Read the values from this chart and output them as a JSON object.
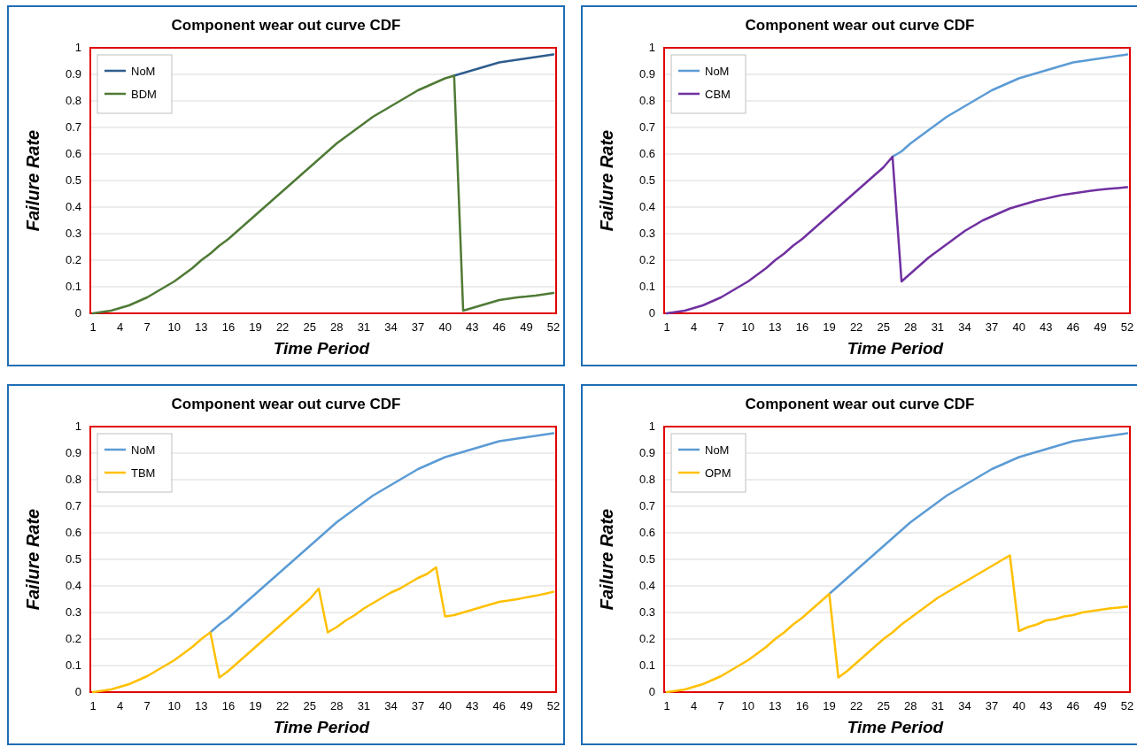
{
  "chart_data": [
    {
      "type": "line",
      "title": "Component wear out curve CDF",
      "xlabel": "Time Period",
      "ylabel": "Failure Rate",
      "categories": [
        "1",
        null,
        null,
        "4",
        null,
        null,
        "7",
        null,
        null,
        "10",
        null,
        null,
        "13",
        null,
        null,
        "16",
        null,
        null,
        "19",
        null,
        null,
        "22",
        null,
        null,
        "25",
        null,
        null,
        "28",
        null,
        null,
        "31",
        null,
        null,
        "34",
        null,
        null,
        "37",
        null,
        null,
        "40",
        null,
        null,
        "43",
        null,
        null,
        "46",
        null,
        null,
        "49",
        null,
        null,
        "52"
      ],
      "ylim": [
        0,
        1
      ],
      "yticks": [
        0,
        0.1,
        0.2,
        0.3,
        0.4,
        0.5,
        0.6,
        0.7,
        0.8,
        0.9,
        1
      ],
      "grid": "y",
      "legend": "top left",
      "series": [
        {
          "name": "NoM",
          "color": "#2e5d8e",
          "values": [
            null,
            null,
            null,
            null,
            null,
            null,
            null,
            null,
            null,
            null,
            null,
            null,
            null,
            null,
            null,
            null,
            null,
            null,
            null,
            null,
            null,
            null,
            null,
            null,
            null,
            null,
            null,
            null,
            null,
            null,
            null,
            null,
            null,
            null,
            null,
            null,
            null,
            null,
            null,
            null,
            0.895,
            0.905,
            0.915,
            0.925,
            0.935,
            0.945,
            0.95,
            0.955,
            0.96,
            0.965,
            0.97,
            0.975
          ]
        },
        {
          "name": "BDM",
          "color": "#4f7a35",
          "values": [
            0,
            0.005,
            0.01,
            0.02,
            0.03,
            0.045,
            0.06,
            0.08,
            0.1,
            0.12,
            0.145,
            0.17,
            0.2,
            0.225,
            0.255,
            0.28,
            0.31,
            0.34,
            0.37,
            0.4,
            0.43,
            0.46,
            0.49,
            0.52,
            0.55,
            0.58,
            0.61,
            0.64,
            0.665,
            0.69,
            0.715,
            0.74,
            0.76,
            0.78,
            0.8,
            0.82,
            0.84,
            0.855,
            0.87,
            0.885,
            0.895,
            0.01,
            0.02,
            0.03,
            0.04,
            0.05,
            0.055,
            0.06,
            0.063,
            0.067,
            0.072,
            0.077
          ]
        }
      ]
    },
    {
      "type": "line",
      "title": "Component wear out curve CDF",
      "xlabel": "Time Period",
      "ylabel": "Failure Rate",
      "categories": [
        "1",
        null,
        null,
        "4",
        null,
        null,
        "7",
        null,
        null,
        "10",
        null,
        null,
        "13",
        null,
        null,
        "16",
        null,
        null,
        "19",
        null,
        null,
        "22",
        null,
        null,
        "25",
        null,
        null,
        "28",
        null,
        null,
        "31",
        null,
        null,
        "34",
        null,
        null,
        "37",
        null,
        null,
        "40",
        null,
        null,
        "43",
        null,
        null,
        "46",
        null,
        null,
        "49",
        null,
        null,
        "52"
      ],
      "ylim": [
        0,
        1
      ],
      "yticks": [
        0,
        0.1,
        0.2,
        0.3,
        0.4,
        0.5,
        0.6,
        0.7,
        0.8,
        0.9,
        1
      ],
      "grid": "y",
      "legend": "top left",
      "series": [
        {
          "name": "NoM",
          "color": "#5b9bd5",
          "values": [
            null,
            null,
            null,
            null,
            null,
            null,
            null,
            null,
            null,
            null,
            null,
            null,
            null,
            null,
            null,
            null,
            null,
            null,
            null,
            null,
            null,
            null,
            null,
            null,
            null,
            0.59,
            0.61,
            0.64,
            0.665,
            0.69,
            0.715,
            0.74,
            0.76,
            0.78,
            0.8,
            0.82,
            0.84,
            0.855,
            0.87,
            0.885,
            0.895,
            0.905,
            0.915,
            0.925,
            0.935,
            0.945,
            0.95,
            0.955,
            0.96,
            0.965,
            0.97,
            0.975
          ]
        },
        {
          "name": "CBM",
          "color": "#7030a0",
          "values": [
            0,
            0.005,
            0.01,
            0.02,
            0.03,
            0.045,
            0.06,
            0.08,
            0.1,
            0.12,
            0.145,
            0.17,
            0.2,
            0.225,
            0.255,
            0.28,
            0.31,
            0.34,
            0.37,
            0.4,
            0.43,
            0.46,
            0.49,
            0.52,
            0.55,
            0.59,
            0.12,
            0.15,
            0.18,
            0.21,
            0.235,
            0.26,
            0.285,
            0.31,
            0.33,
            0.35,
            0.365,
            0.38,
            0.395,
            0.405,
            0.415,
            0.425,
            0.432,
            0.44,
            0.447,
            0.452,
            0.457,
            0.462,
            0.466,
            0.469,
            0.472,
            0.475
          ]
        }
      ]
    },
    {
      "type": "line",
      "title": "Component wear out curve CDF",
      "xlabel": "Time Period",
      "ylabel": "Failure Rate",
      "categories": [
        "1",
        null,
        null,
        "4",
        null,
        null,
        "7",
        null,
        null,
        "10",
        null,
        null,
        "13",
        null,
        null,
        "16",
        null,
        null,
        "19",
        null,
        null,
        "22",
        null,
        null,
        "25",
        null,
        null,
        "28",
        null,
        null,
        "31",
        null,
        null,
        "34",
        null,
        null,
        "37",
        null,
        null,
        "40",
        null,
        null,
        "43",
        null,
        null,
        "46",
        null,
        null,
        "49",
        null,
        null,
        "52"
      ],
      "ylim": [
        0,
        1
      ],
      "yticks": [
        0,
        0.1,
        0.2,
        0.3,
        0.4,
        0.5,
        0.6,
        0.7,
        0.8,
        0.9,
        1
      ],
      "grid": "y",
      "legend": "top left",
      "series": [
        {
          "name": "NoM",
          "color": "#5b9bd5",
          "values": [
            null,
            null,
            null,
            null,
            null,
            null,
            null,
            null,
            null,
            null,
            null,
            null,
            null,
            0.225,
            0.255,
            0.28,
            0.31,
            0.34,
            0.37,
            0.4,
            0.43,
            0.46,
            0.49,
            0.52,
            0.55,
            0.58,
            0.61,
            0.64,
            0.665,
            0.69,
            0.715,
            0.74,
            0.76,
            0.78,
            0.8,
            0.82,
            0.84,
            0.855,
            0.87,
            0.885,
            0.895,
            0.905,
            0.915,
            0.925,
            0.935,
            0.945,
            0.95,
            0.955,
            0.96,
            0.965,
            0.97,
            0.975
          ]
        },
        {
          "name": "TBM",
          "color": "#ffc000",
          "values": [
            0,
            0.005,
            0.01,
            0.02,
            0.03,
            0.045,
            0.06,
            0.08,
            0.1,
            0.12,
            0.145,
            0.17,
            0.2,
            0.225,
            0.055,
            0.08,
            0.11,
            0.14,
            0.17,
            0.2,
            0.23,
            0.26,
            0.29,
            0.32,
            0.35,
            0.39,
            0.225,
            0.245,
            0.27,
            0.29,
            0.315,
            0.335,
            0.355,
            0.375,
            0.39,
            0.41,
            0.43,
            0.445,
            0.47,
            0.285,
            0.29,
            0.3,
            0.31,
            0.32,
            0.33,
            0.34,
            0.345,
            0.35,
            0.357,
            0.363,
            0.37,
            0.378
          ]
        }
      ]
    },
    {
      "type": "line",
      "title": "Component wear out curve CDF",
      "xlabel": "Time Period",
      "ylabel": "Failure Rate",
      "categories": [
        "1",
        null,
        null,
        "4",
        null,
        null,
        "7",
        null,
        null,
        "10",
        null,
        null,
        "13",
        null,
        null,
        "16",
        null,
        null,
        "19",
        null,
        null,
        "22",
        null,
        null,
        "25",
        null,
        null,
        "28",
        null,
        null,
        "31",
        null,
        null,
        "34",
        null,
        null,
        "37",
        null,
        null,
        "40",
        null,
        null,
        "43",
        null,
        null,
        "46",
        null,
        null,
        "49",
        null,
        null,
        "52"
      ],
      "ylim": [
        0,
        1
      ],
      "yticks": [
        0,
        0.1,
        0.2,
        0.3,
        0.4,
        0.5,
        0.6,
        0.7,
        0.8,
        0.9,
        1
      ],
      "grid": "y",
      "legend": "top left",
      "series": [
        {
          "name": "NoM",
          "color": "#5b9bd5",
          "values": [
            null,
            null,
            null,
            null,
            null,
            null,
            null,
            null,
            null,
            null,
            null,
            null,
            null,
            null,
            null,
            null,
            null,
            null,
            0.37,
            0.4,
            0.43,
            0.46,
            0.49,
            0.52,
            0.55,
            0.58,
            0.61,
            0.64,
            0.665,
            0.69,
            0.715,
            0.74,
            0.76,
            0.78,
            0.8,
            0.82,
            0.84,
            0.855,
            0.87,
            0.885,
            0.895,
            0.905,
            0.915,
            0.925,
            0.935,
            0.945,
            0.95,
            0.955,
            0.96,
            0.965,
            0.97,
            0.975
          ]
        },
        {
          "name": "OPM",
          "color": "#ffc000",
          "values": [
            0,
            0.005,
            0.01,
            0.02,
            0.03,
            0.045,
            0.06,
            0.08,
            0.1,
            0.12,
            0.145,
            0.17,
            0.2,
            0.225,
            0.255,
            0.28,
            0.31,
            0.34,
            0.37,
            0.055,
            0.08,
            0.11,
            0.14,
            0.17,
            0.2,
            0.225,
            0.255,
            0.28,
            0.305,
            0.33,
            0.355,
            0.375,
            0.395,
            0.415,
            0.435,
            0.455,
            0.475,
            0.495,
            0.515,
            0.23,
            0.245,
            0.255,
            0.27,
            0.275,
            0.285,
            0.29,
            0.3,
            0.305,
            0.31,
            0.315,
            0.318,
            0.322
          ]
        }
      ]
    }
  ]
}
